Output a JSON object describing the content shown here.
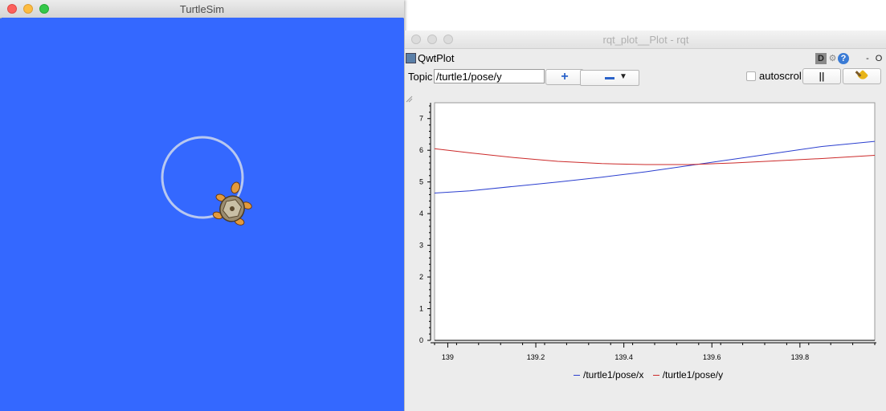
{
  "turtlesim": {
    "title": "TurtleSim",
    "background": "#3468ff",
    "path_color": "#b8c8f0",
    "turtle_icon": "turtle-icon"
  },
  "rqt": {
    "title": "rqt_plot__Plot - rqt",
    "plugin_title": "QwtPlot",
    "plugin_icons": [
      "d-icon",
      "gear-icon",
      "help-icon",
      "minimize-icon",
      "close-icon"
    ],
    "plugin_d_label": "D",
    "plugin_help_label": "?",
    "plugin_min_label": "-",
    "plugin_close_label": "O",
    "topic_label": "Topic",
    "topic_value": "/turtle1/pose/y",
    "add_button_label": "+",
    "remove_caret": "▼",
    "autoscroll_label": "autoscrol",
    "autoscroll_checked": false,
    "pause_label": "||",
    "clear_icon": "broom-icon"
  },
  "chart_data": {
    "type": "line",
    "title": "",
    "xlabel": "",
    "ylabel": "",
    "xlim": [
      138.97,
      139.97
    ],
    "ylim": [
      0,
      7.5
    ],
    "x_ticks": [
      139,
      139.2,
      139.4,
      139.6,
      139.8
    ],
    "x_tick_labels": [
      "139",
      "139.2",
      "139.4",
      "139.6",
      "139.8"
    ],
    "y_ticks": [
      0,
      1,
      2,
      3,
      4,
      5,
      6,
      7
    ],
    "y_tick_labels": [
      "0",
      "1",
      "2",
      "3",
      "4",
      "5",
      "6",
      "7"
    ],
    "grid": false,
    "legend_position": "bottom",
    "series": [
      {
        "name": "/turtle1/pose/x",
        "color": "#2b3fcf",
        "x": [
          138.97,
          139.05,
          139.15,
          139.25,
          139.35,
          139.45,
          139.55,
          139.65,
          139.75,
          139.85,
          139.97
        ],
        "y": [
          4.65,
          4.72,
          4.86,
          5.0,
          5.15,
          5.32,
          5.52,
          5.72,
          5.92,
          6.12,
          6.28
        ]
      },
      {
        "name": "/turtle1/pose/y",
        "color": "#cc2a2a",
        "x": [
          138.97,
          139.05,
          139.15,
          139.25,
          139.35,
          139.45,
          139.55,
          139.65,
          139.75,
          139.85,
          139.97
        ],
        "y": [
          6.05,
          5.92,
          5.77,
          5.65,
          5.58,
          5.55,
          5.55,
          5.6,
          5.67,
          5.74,
          5.84
        ]
      }
    ]
  }
}
